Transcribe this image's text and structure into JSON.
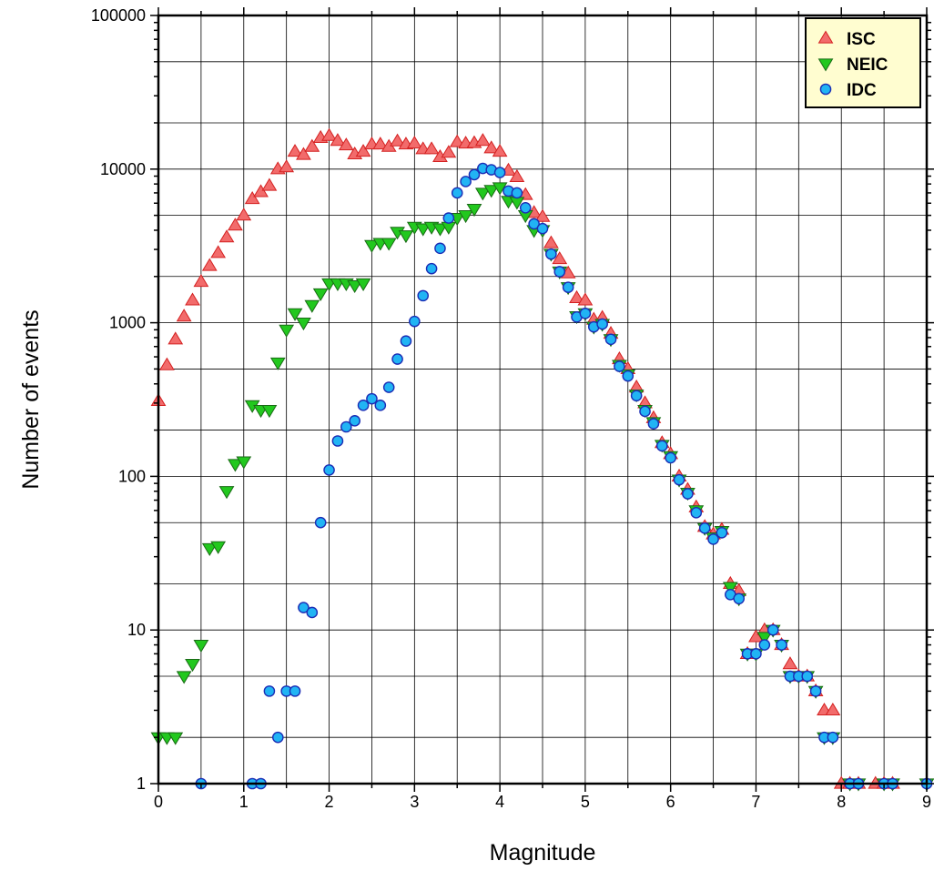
{
  "chart_data": {
    "type": "scatter",
    "title": "",
    "xlabel": "Magnitude",
    "ylabel": "Number of events",
    "xlim": [
      0,
      9
    ],
    "ylim": [
      1,
      100000
    ],
    "yscale": "log",
    "grid": true,
    "legend_position": "top-right",
    "x_ticks": [
      "0",
      "1",
      "2",
      "3",
      "4",
      "5",
      "6",
      "7",
      "8",
      "9"
    ],
    "y_ticks": [
      "1",
      "10",
      "100",
      "1000",
      "10000",
      "100000"
    ],
    "series": [
      {
        "name": "ISC",
        "marker": "triangle-up",
        "color": "#f26b6b",
        "edge": "#d42020",
        "points": [
          [
            0.0,
            310
          ],
          [
            0.1,
            530
          ],
          [
            0.2,
            780
          ],
          [
            0.3,
            1100
          ],
          [
            0.4,
            1400
          ],
          [
            0.5,
            1850
          ],
          [
            0.6,
            2350
          ],
          [
            0.7,
            2850
          ],
          [
            0.8,
            3600
          ],
          [
            0.9,
            4300
          ],
          [
            1.0,
            5000
          ],
          [
            1.1,
            6400
          ],
          [
            1.2,
            7100
          ],
          [
            1.3,
            7800
          ],
          [
            1.4,
            10000
          ],
          [
            1.5,
            10300
          ],
          [
            1.6,
            13000
          ],
          [
            1.7,
            12400
          ],
          [
            1.8,
            14000
          ],
          [
            1.9,
            16000
          ],
          [
            2.0,
            16500
          ],
          [
            2.1,
            15300
          ],
          [
            2.2,
            14300
          ],
          [
            2.3,
            12500
          ],
          [
            2.4,
            13000
          ],
          [
            2.5,
            14500
          ],
          [
            2.6,
            14500
          ],
          [
            2.7,
            14000
          ],
          [
            2.8,
            15200
          ],
          [
            2.9,
            14500
          ],
          [
            3.0,
            14700
          ],
          [
            3.1,
            13500
          ],
          [
            3.2,
            13500
          ],
          [
            3.3,
            12000
          ],
          [
            3.4,
            12800
          ],
          [
            3.5,
            15000
          ],
          [
            3.6,
            14700
          ],
          [
            3.7,
            14800
          ],
          [
            3.8,
            15300
          ],
          [
            3.9,
            13700
          ],
          [
            4.0,
            13000
          ],
          [
            4.1,
            9800
          ],
          [
            4.2,
            8900
          ],
          [
            4.3,
            6800
          ],
          [
            4.4,
            5200
          ],
          [
            4.5,
            4900
          ],
          [
            4.6,
            3300
          ],
          [
            4.7,
            2600
          ],
          [
            4.8,
            2100
          ],
          [
            4.9,
            1450
          ],
          [
            5.0,
            1400
          ],
          [
            5.1,
            1050
          ],
          [
            5.2,
            1080
          ],
          [
            5.3,
            850
          ],
          [
            5.4,
            580
          ],
          [
            5.5,
            500
          ],
          [
            5.6,
            380
          ],
          [
            5.7,
            300
          ],
          [
            5.8,
            240
          ],
          [
            5.9,
            165
          ],
          [
            6.0,
            140
          ],
          [
            6.1,
            100
          ],
          [
            6.2,
            82
          ],
          [
            6.3,
            63
          ],
          [
            6.4,
            47
          ],
          [
            6.5,
            42
          ],
          [
            6.6,
            45
          ],
          [
            6.7,
            20
          ],
          [
            6.8,
            18
          ],
          [
            6.9,
            7
          ],
          [
            7.0,
            9
          ],
          [
            7.1,
            10
          ],
          [
            7.2,
            10
          ],
          [
            7.3,
            8
          ],
          [
            7.4,
            6
          ],
          [
            7.5,
            5
          ],
          [
            7.6,
            5
          ],
          [
            7.7,
            4
          ],
          [
            7.8,
            3
          ],
          [
            7.9,
            3
          ],
          [
            8.0,
            1
          ],
          [
            8.1,
            1
          ],
          [
            8.2,
            1
          ],
          [
            8.4,
            1
          ],
          [
            8.5,
            1
          ],
          [
            8.6,
            1
          ]
        ]
      },
      {
        "name": "NEIC",
        "marker": "triangle-down",
        "color": "#22c81e",
        "edge": "#1a6a16",
        "points": [
          [
            0.0,
            2
          ],
          [
            0.1,
            2
          ],
          [
            0.2,
            2
          ],
          [
            0.3,
            5
          ],
          [
            0.4,
            6
          ],
          [
            0.5,
            8
          ],
          [
            0.6,
            34
          ],
          [
            0.7,
            35
          ],
          [
            0.8,
            80
          ],
          [
            0.9,
            120
          ],
          [
            1.0,
            125
          ],
          [
            1.1,
            290
          ],
          [
            1.2,
            270
          ],
          [
            1.3,
            270
          ],
          [
            1.4,
            550
          ],
          [
            1.5,
            900
          ],
          [
            1.6,
            1150
          ],
          [
            1.7,
            1000
          ],
          [
            1.8,
            1300
          ],
          [
            1.9,
            1550
          ],
          [
            2.0,
            1800
          ],
          [
            2.1,
            1800
          ],
          [
            2.2,
            1800
          ],
          [
            2.3,
            1750
          ],
          [
            2.4,
            1800
          ],
          [
            2.5,
            3200
          ],
          [
            2.6,
            3300
          ],
          [
            2.7,
            3300
          ],
          [
            2.8,
            3900
          ],
          [
            2.9,
            3700
          ],
          [
            3.0,
            4200
          ],
          [
            3.1,
            4100
          ],
          [
            3.2,
            4200
          ],
          [
            3.3,
            4100
          ],
          [
            3.4,
            4200
          ],
          [
            3.5,
            4800
          ],
          [
            3.6,
            5000
          ],
          [
            3.7,
            5500
          ],
          [
            3.8,
            7000
          ],
          [
            3.9,
            7300
          ],
          [
            4.0,
            7600
          ],
          [
            4.1,
            6200
          ],
          [
            4.2,
            6100
          ],
          [
            4.3,
            5000
          ],
          [
            4.4,
            4000
          ],
          [
            4.5,
            4000
          ],
          [
            4.6,
            2800
          ],
          [
            4.7,
            2150
          ],
          [
            4.8,
            1700
          ],
          [
            4.9,
            1100
          ],
          [
            5.0,
            1150
          ],
          [
            5.1,
            940
          ],
          [
            5.2,
            980
          ],
          [
            5.3,
            780
          ],
          [
            5.4,
            530
          ],
          [
            5.5,
            460
          ],
          [
            5.6,
            340
          ],
          [
            5.7,
            270
          ],
          [
            5.8,
            225
          ],
          [
            5.9,
            160
          ],
          [
            6.0,
            135
          ],
          [
            6.1,
            95
          ],
          [
            6.2,
            78
          ],
          [
            6.3,
            60
          ],
          [
            6.4,
            46
          ],
          [
            6.5,
            40
          ],
          [
            6.6,
            44
          ],
          [
            6.7,
            19
          ],
          [
            6.8,
            16
          ],
          [
            6.9,
            7
          ],
          [
            7.0,
            7
          ],
          [
            7.1,
            9
          ],
          [
            7.2,
            10
          ],
          [
            7.3,
            8
          ],
          [
            7.4,
            5
          ],
          [
            7.5,
            5
          ],
          [
            7.6,
            5
          ],
          [
            7.7,
            4
          ],
          [
            7.8,
            2
          ],
          [
            7.9,
            2
          ],
          [
            8.1,
            1
          ],
          [
            8.2,
            1
          ],
          [
            8.5,
            1
          ],
          [
            8.6,
            1
          ],
          [
            9.0,
            1
          ]
        ]
      },
      {
        "name": "IDC",
        "marker": "circle",
        "color": "#21b4f4",
        "edge": "#1b2db5",
        "points": [
          [
            0.5,
            1
          ],
          [
            1.1,
            1
          ],
          [
            1.2,
            1
          ],
          [
            1.3,
            4
          ],
          [
            1.4,
            2
          ],
          [
            1.5,
            4
          ],
          [
            1.6,
            4
          ],
          [
            1.7,
            14
          ],
          [
            1.8,
            13
          ],
          [
            1.9,
            50
          ],
          [
            2.0,
            110
          ],
          [
            2.1,
            170
          ],
          [
            2.2,
            210
          ],
          [
            2.3,
            230
          ],
          [
            2.4,
            290
          ],
          [
            2.5,
            320
          ],
          [
            2.6,
            290
          ],
          [
            2.7,
            380
          ],
          [
            2.8,
            580
          ],
          [
            2.9,
            760
          ],
          [
            3.0,
            1020
          ],
          [
            3.1,
            1500
          ],
          [
            3.2,
            2250
          ],
          [
            3.3,
            3050
          ],
          [
            3.4,
            4800
          ],
          [
            3.5,
            7000
          ],
          [
            3.6,
            8300
          ],
          [
            3.7,
            9200
          ],
          [
            3.8,
            10100
          ],
          [
            3.9,
            9900
          ],
          [
            4.0,
            9500
          ],
          [
            4.1,
            7200
          ],
          [
            4.2,
            7000
          ],
          [
            4.3,
            5600
          ],
          [
            4.4,
            4400
          ],
          [
            4.5,
            4100
          ],
          [
            4.6,
            2800
          ],
          [
            4.7,
            2150
          ],
          [
            4.8,
            1700
          ],
          [
            4.9,
            1090
          ],
          [
            5.0,
            1150
          ],
          [
            5.1,
            940
          ],
          [
            5.2,
            980
          ],
          [
            5.3,
            780
          ],
          [
            5.4,
            520
          ],
          [
            5.5,
            450
          ],
          [
            5.6,
            335
          ],
          [
            5.7,
            265
          ],
          [
            5.8,
            220
          ],
          [
            5.9,
            158
          ],
          [
            6.0,
            132
          ],
          [
            6.1,
            95
          ],
          [
            6.2,
            77
          ],
          [
            6.3,
            58
          ],
          [
            6.4,
            46
          ],
          [
            6.5,
            39
          ],
          [
            6.6,
            43
          ],
          [
            6.7,
            17
          ],
          [
            6.8,
            16
          ],
          [
            6.9,
            7
          ],
          [
            7.0,
            7
          ],
          [
            7.1,
            8
          ],
          [
            7.2,
            10
          ],
          [
            7.3,
            8
          ],
          [
            7.4,
            5
          ],
          [
            7.5,
            5
          ],
          [
            7.6,
            5
          ],
          [
            7.7,
            4
          ],
          [
            7.8,
            2
          ],
          [
            7.9,
            2
          ],
          [
            8.1,
            1
          ],
          [
            8.2,
            1
          ],
          [
            8.5,
            1
          ],
          [
            8.6,
            1
          ],
          [
            9.0,
            1
          ]
        ]
      }
    ]
  }
}
